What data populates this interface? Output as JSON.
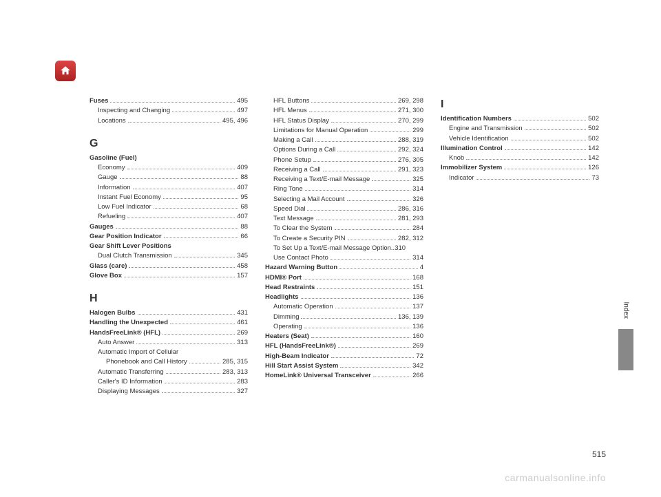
{
  "pageNumber": "515",
  "watermark": "carmanualsonline.info",
  "sideLabel": "Index",
  "columns": [
    {
      "entries": [
        {
          "label": "Fuses",
          "bold": true,
          "pg": "495",
          "indent": 0
        },
        {
          "label": "Inspecting and Changing",
          "pg": "497",
          "indent": 1
        },
        {
          "label": "Locations",
          "pg": "495, 496",
          "indent": 1
        },
        {
          "type": "letter",
          "label": "G"
        },
        {
          "label": "Gasoline (Fuel)",
          "bold": true,
          "indent": 0
        },
        {
          "label": "Economy",
          "pg": "409",
          "indent": 1
        },
        {
          "label": "Gauge",
          "pg": "88",
          "indent": 1
        },
        {
          "label": "Information",
          "pg": "407",
          "indent": 1
        },
        {
          "label": "Instant Fuel Economy",
          "pg": "95",
          "indent": 1
        },
        {
          "label": "Low Fuel Indicator",
          "pg": "68",
          "indent": 1
        },
        {
          "label": "Refueling",
          "pg": "407",
          "indent": 1
        },
        {
          "label": "Gauges",
          "bold": true,
          "pg": "88",
          "indent": 0
        },
        {
          "label": "Gear Position Indicator",
          "bold": true,
          "pg": "66",
          "indent": 0
        },
        {
          "label": "Gear Shift Lever Positions",
          "bold": true,
          "indent": 0
        },
        {
          "label": "Dual Clutch Transmission",
          "pg": "345",
          "indent": 1
        },
        {
          "label": "Glass (care)",
          "bold": true,
          "pg": "458",
          "indent": 0
        },
        {
          "label": "Glove Box",
          "bold": true,
          "pg": "157",
          "indent": 0
        },
        {
          "type": "letter",
          "label": "H"
        },
        {
          "label": "Halogen Bulbs",
          "bold": true,
          "pg": "431",
          "indent": 0
        },
        {
          "label": "Handling the Unexpected",
          "bold": true,
          "pg": "461",
          "indent": 0
        },
        {
          "label": "HandsFreeLink® (HFL)",
          "bold": true,
          "pg": "269",
          "indent": 0
        },
        {
          "label": "Auto Answer",
          "pg": "313",
          "indent": 1
        },
        {
          "label": "Automatic Import of Cellular",
          "indent": 1
        },
        {
          "label": "Phonebook and Call History",
          "pg": "285, 315",
          "indent": 2
        },
        {
          "label": "Automatic Transferring",
          "pg": "283, 313",
          "indent": 1
        },
        {
          "label": "Caller's ID Information",
          "pg": "283",
          "indent": 1
        },
        {
          "label": "Displaying Messages",
          "pg": "327",
          "indent": 1
        }
      ]
    },
    {
      "entries": [
        {
          "label": "HFL Buttons",
          "pg": "269, 298",
          "indent": 1
        },
        {
          "label": "HFL Menus",
          "pg": "271, 300",
          "indent": 1
        },
        {
          "label": "HFL Status Display",
          "pg": "270, 299",
          "indent": 1
        },
        {
          "label": "Limitations for Manual Operation",
          "pg": "299",
          "indent": 1
        },
        {
          "label": "Making a Call",
          "pg": "288, 319",
          "indent": 1
        },
        {
          "label": "Options During a Call",
          "pg": "292, 324",
          "indent": 1
        },
        {
          "label": "Phone Setup",
          "pg": "276, 305",
          "indent": 1
        },
        {
          "label": "Receiving a Call",
          "pg": "291, 323",
          "indent": 1
        },
        {
          "label": "Receiving a Text/E-mail Message",
          "pg": "325",
          "indent": 1
        },
        {
          "label": "Ring Tone",
          "pg": "314",
          "indent": 1
        },
        {
          "label": "Selecting a Mail Account",
          "pg": "326",
          "indent": 1
        },
        {
          "label": "Speed Dial",
          "pg": "286, 316",
          "indent": 1
        },
        {
          "label": "Text Message",
          "pg": "281, 293",
          "indent": 1
        },
        {
          "label": "To Clear the System",
          "pg": "284",
          "indent": 1
        },
        {
          "label": "To Create a Security PIN",
          "pg": "282, 312",
          "indent": 1
        },
        {
          "label": "To Set Up a Text/E-mail Message Option",
          "pg": "310",
          "indent": 1,
          "tight": true
        },
        {
          "label": "Use Contact Photo",
          "pg": "314",
          "indent": 1
        },
        {
          "label": "Hazard Warning Button",
          "bold": true,
          "pg": "4",
          "indent": 0
        },
        {
          "label": "HDMI® Port",
          "bold": true,
          "pg": "168",
          "indent": 0
        },
        {
          "label": "Head Restraints",
          "bold": true,
          "pg": "151",
          "indent": 0
        },
        {
          "label": "Headlights",
          "bold": true,
          "pg": "136",
          "indent": 0
        },
        {
          "label": "Automatic Operation",
          "pg": "137",
          "indent": 1
        },
        {
          "label": "Dimming",
          "pg": "136, 139",
          "indent": 1
        },
        {
          "label": "Operating",
          "pg": "136",
          "indent": 1
        },
        {
          "label": "Heaters (Seat)",
          "bold": true,
          "pg": "160",
          "indent": 0
        },
        {
          "label": "HFL (HandsFreeLink®)",
          "bold": true,
          "pg": "269",
          "indent": 0
        },
        {
          "label": "High-Beam Indicator",
          "bold": true,
          "pg": "72",
          "indent": 0
        },
        {
          "label": "Hill Start Assist System",
          "bold": true,
          "pg": "342",
          "indent": 0
        },
        {
          "label": "HomeLink® Universal Transceiver",
          "bold": true,
          "pg": "266",
          "indent": 0
        }
      ]
    },
    {
      "entries": [
        {
          "type": "letter",
          "label": "I",
          "notop": true
        },
        {
          "label": "Identification Numbers",
          "bold": true,
          "pg": "502",
          "indent": 0
        },
        {
          "label": "Engine and Transmission",
          "pg": "502",
          "indent": 1
        },
        {
          "label": "Vehicle Identification",
          "pg": "502",
          "indent": 1
        },
        {
          "label": "Illumination Control",
          "bold": true,
          "pg": "142",
          "indent": 0
        },
        {
          "label": "Knob",
          "pg": "142",
          "indent": 1
        },
        {
          "label": "Immobilizer System",
          "bold": true,
          "pg": "126",
          "indent": 0
        },
        {
          "label": "Indicator",
          "pg": "73",
          "indent": 1
        }
      ]
    }
  ]
}
